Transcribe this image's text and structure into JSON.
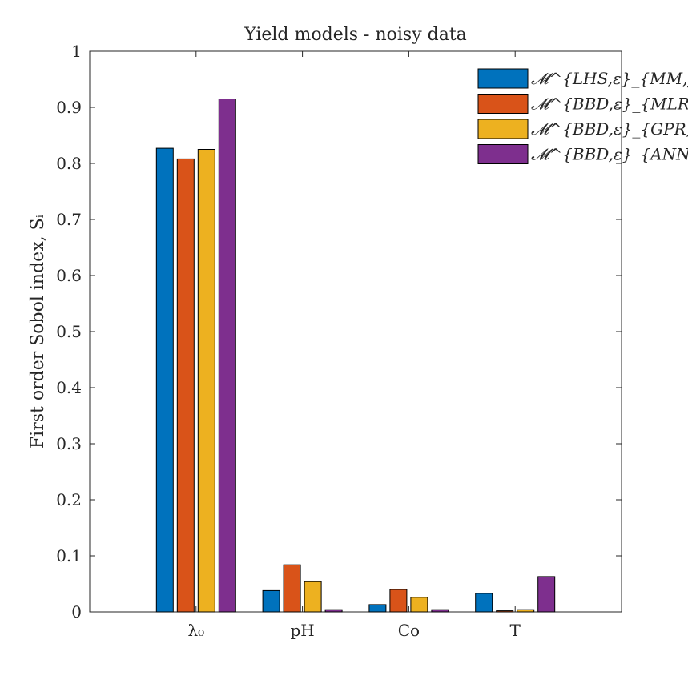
{
  "chart_data": {
    "type": "bar",
    "title": "Yield models - noisy data",
    "xlabel": "",
    "ylabel": "First order Sobol index, Sᵢ",
    "categories": [
      "λ₀",
      "pH",
      "Co",
      "T"
    ],
    "ylim": [
      0,
      1
    ],
    "yticks": [
      "0",
      "0.1",
      "0.2",
      "0.3",
      "0.4",
      "0.5",
      "0.6",
      "0.7",
      "0.8",
      "0.9",
      "1"
    ],
    "grid": false,
    "legend_position": "top-right",
    "series": [
      {
        "name": "𝓜^{LHS,ε}_{MM,y_D}",
        "color": "#0072BD",
        "values": [
          0.827,
          0.038,
          0.013,
          0.033
        ]
      },
      {
        "name": "𝓜^{BBD,ε}_{MLR,y_D}",
        "color": "#D95319",
        "values": [
          0.808,
          0.084,
          0.04,
          0.002
        ]
      },
      {
        "name": "𝓜^{BBD,ε}_{GPR,y_D}",
        "color": "#EDB120",
        "values": [
          0.825,
          0.054,
          0.026,
          0.004
        ]
      },
      {
        "name": "𝓜^{BBD,ε}_{ANN,y_D}",
        "color": "#7E2F8E",
        "values": [
          0.915,
          0.004,
          0.004,
          0.063
        ]
      }
    ]
  }
}
